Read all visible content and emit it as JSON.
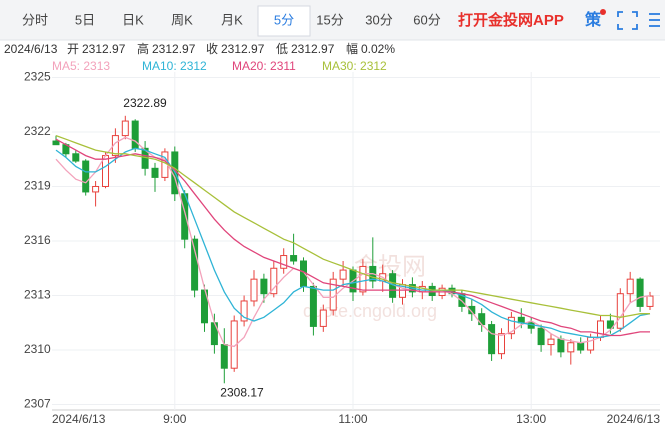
{
  "tabs": [
    "分时",
    "5日",
    "日K",
    "周K",
    "月K",
    "5分",
    "15分",
    "30分",
    "60分"
  ],
  "selected_tab": 5,
  "app_link": "打开金投网APP",
  "strategy": "策",
  "info": [
    "2024/6/13",
    "开",
    "2312.97",
    "高",
    "2312.97",
    "收",
    "2312.97",
    "低",
    "2312.97",
    "幅",
    "0.02%"
  ],
  "watermark": [
    "金投网",
    "quote.cngold.org"
  ],
  "chart_data": {
    "type": "candlestick",
    "up_color": "#e8413c",
    "down_color": "#1e9e38",
    "ylim": [
      2306.7,
      2325.3
    ],
    "yticks": [
      2307,
      2310,
      2313,
      2316,
      2319,
      2322,
      2325
    ],
    "grid": true,
    "categories": [
      "2024/6/13",
      null,
      null,
      null,
      null,
      null,
      null,
      null,
      null,
      null,
      null,
      null,
      "9:00",
      null,
      null,
      null,
      null,
      null,
      null,
      null,
      null,
      null,
      null,
      null,
      null,
      null,
      null,
      null,
      null,
      null,
      "11:00",
      null,
      null,
      null,
      null,
      null,
      null,
      null,
      null,
      null,
      null,
      null,
      null,
      null,
      null,
      null,
      null,
      null,
      "13:00",
      null,
      null,
      null,
      null,
      null,
      null,
      null,
      null,
      null,
      null,
      null,
      "2024/6/13"
    ],
    "open": [
      2321.5,
      2321.3,
      2320.8,
      2320.4,
      2318.7,
      2319.0,
      2320.7,
      2321.8,
      2322.6,
      2321.1,
      2320.0,
      2319.5,
      2320.9,
      2318.6,
      2316.1,
      2313.3,
      2311.5,
      2310.3,
      2309.0,
      2311.6,
      2312.7,
      2313.9,
      2313.1,
      2314.5,
      2315.2,
      2314.9,
      2313.5,
      2311.3,
      2312.2,
      2313.9,
      2314.4,
      2313.2,
      2314.6,
      2313.8,
      2314.2,
      2312.9,
      2313.6,
      2313.2,
      2313.5,
      2313.0,
      2313.4,
      2313.1,
      2312.4,
      2312.0,
      2311.4,
      2309.8,
      2310.9,
      2311.8,
      2311.5,
      2311.2,
      2310.3,
      2310.6,
      2309.9,
      2310.4,
      2310.0,
      2310.7,
      2311.6,
      2311.2,
      2313.1,
      2313.9,
      2312.4
    ],
    "high": [
      2321.8,
      2321.4,
      2321.0,
      2320.5,
      2319.3,
      2320.9,
      2322.2,
      2322.89,
      2322.7,
      2321.5,
      2320.3,
      2321.1,
      2321.2,
      2318.8,
      2316.3,
      2313.6,
      2312.0,
      2311.2,
      2311.9,
      2313.0,
      2314.4,
      2314.2,
      2314.9,
      2315.6,
      2316.4,
      2315.1,
      2313.7,
      2312.5,
      2314.3,
      2314.9,
      2314.6,
      2315.0,
      2316.2,
      2314.7,
      2314.4,
      2313.9,
      2314.0,
      2313.8,
      2313.7,
      2313.6,
      2313.6,
      2313.3,
      2312.8,
      2312.3,
      2311.6,
      2311.2,
      2312.1,
      2312.3,
      2311.8,
      2311.4,
      2310.9,
      2310.8,
      2310.6,
      2310.7,
      2310.9,
      2311.9,
      2312.0,
      2313.4,
      2314.3,
      2314.0,
      2313.2
    ],
    "low": [
      2321.3,
      2320.6,
      2320.3,
      2318.5,
      2317.9,
      2318.9,
      2320.3,
      2321.6,
      2320.9,
      2319.6,
      2318.7,
      2319.3,
      2318.2,
      2315.6,
      2312.9,
      2311.0,
      2309.8,
      2308.17,
      2308.8,
      2311.3,
      2312.4,
      2312.6,
      2312.9,
      2314.2,
      2314.7,
      2313.2,
      2310.8,
      2311.0,
      2311.9,
      2313.5,
      2312.7,
      2313.0,
      2313.4,
      2313.2,
      2312.6,
      2312.5,
      2312.9,
      2312.8,
      2312.7,
      2312.8,
      2312.9,
      2312.1,
      2311.6,
      2311.0,
      2309.4,
      2309.5,
      2310.6,
      2311.2,
      2310.9,
      2309.9,
      2309.7,
      2309.6,
      2309.2,
      2309.8,
      2309.8,
      2310.5,
      2310.9,
      2311.0,
      2312.6,
      2312.1,
      2312.2
    ],
    "close": [
      2321.3,
      2320.8,
      2320.4,
      2318.7,
      2319.0,
      2320.7,
      2321.8,
      2322.6,
      2321.1,
      2320.0,
      2319.5,
      2320.9,
      2318.6,
      2316.1,
      2313.3,
      2311.5,
      2310.3,
      2309.0,
      2311.6,
      2312.7,
      2313.9,
      2313.1,
      2314.5,
      2315.2,
      2314.9,
      2313.5,
      2311.3,
      2312.2,
      2313.9,
      2314.4,
      2313.2,
      2314.6,
      2313.8,
      2314.2,
      2312.9,
      2313.6,
      2313.2,
      2313.5,
      2313.0,
      2313.4,
      2313.1,
      2312.4,
      2312.0,
      2311.4,
      2309.8,
      2310.9,
      2311.8,
      2311.5,
      2311.2,
      2310.3,
      2310.6,
      2309.9,
      2310.4,
      2310.0,
      2310.7,
      2311.6,
      2311.2,
      2313.1,
      2313.9,
      2312.4,
      2312.97
    ],
    "annotations": [
      {
        "value": 2322.89,
        "label": "2322.89"
      },
      {
        "value": 2308.17,
        "label": "2308.17"
      }
    ],
    "series": [
      {
        "name": "MA5: 2313",
        "color": "#f3a2bb",
        "values": [
          2320.5,
          2319.9,
          2319.4,
          2319.2,
          2319.8,
          2320.7,
          2321.4,
          2321.7,
          2321.5,
          2321.0,
          2320.6,
          2320.5,
          2319.5,
          2317.6,
          2315.5,
          2313.4,
          2311.5,
          2310.3,
          2310.2,
          2310.7,
          2311.8,
          2312.8,
          2313.4,
          2314.0,
          2314.5,
          2314.3,
          2313.6,
          2312.9,
          2312.9,
          2313.4,
          2313.8,
          2314.2,
          2314.2,
          2314.0,
          2313.6,
          2313.4,
          2313.3,
          2313.2,
          2313.2,
          2313.3,
          2313.1,
          2312.7,
          2312.1,
          2311.4,
          2310.9,
          2310.8,
          2311.0,
          2311.4,
          2311.6,
          2311.3,
          2310.9,
          2310.6,
          2310.5,
          2310.4,
          2310.5,
          2310.7,
          2311.1,
          2311.8,
          2312.6,
          2312.9,
          2313.0
        ]
      },
      {
        "name": "MA10: 2312",
        "color": "#2fb4d6",
        "values": [
          2321.0,
          2320.6,
          2320.1,
          2319.8,
          2319.8,
          2320.1,
          2320.5,
          2320.9,
          2321.1,
          2321.0,
          2320.8,
          2320.6,
          2319.8,
          2318.6,
          2317.2,
          2315.8,
          2314.4,
          2313.2,
          2312.3,
          2311.8,
          2311.6,
          2311.8,
          2312.2,
          2312.6,
          2313.2,
          2313.5,
          2313.4,
          2313.3,
          2313.3,
          2313.6,
          2313.7,
          2313.8,
          2313.9,
          2313.8,
          2313.6,
          2313.5,
          2313.4,
          2313.3,
          2313.3,
          2313.3,
          2313.2,
          2313.0,
          2312.8,
          2312.5,
          2312.1,
          2311.8,
          2311.6,
          2311.5,
          2311.4,
          2311.3,
          2311.2,
          2311.0,
          2310.9,
          2310.8,
          2310.7,
          2310.7,
          2310.8,
          2311.1,
          2311.5,
          2311.9,
          2312.0
        ]
      },
      {
        "name": "MA20: 2311",
        "color": "#e0457b",
        "values": [
          2321.6,
          2321.3,
          2321.0,
          2320.7,
          2320.5,
          2320.5,
          2320.6,
          2320.7,
          2320.8,
          2320.7,
          2320.6,
          2320.4,
          2319.9,
          2319.3,
          2318.6,
          2317.9,
          2317.2,
          2316.6,
          2316.1,
          2315.7,
          2315.4,
          2315.1,
          2314.9,
          2314.7,
          2314.5,
          2314.3,
          2314.0,
          2313.7,
          2313.6,
          2313.5,
          2313.4,
          2313.3,
          2313.3,
          2313.3,
          2313.3,
          2313.3,
          2313.3,
          2313.2,
          2313.2,
          2313.2,
          2313.2,
          2313.1,
          2313.0,
          2312.8,
          2312.6,
          2312.4,
          2312.2,
          2312.0,
          2311.8,
          2311.6,
          2311.5,
          2311.3,
          2311.2,
          2311.0,
          2311.0,
          2310.9,
          2310.8,
          2310.8,
          2310.9,
          2311.0,
          2311.0
        ]
      },
      {
        "name": "MA30: 2312",
        "color": "#a8c03a",
        "values": [
          2321.8,
          2321.6,
          2321.4,
          2321.2,
          2321.0,
          2320.9,
          2320.8,
          2320.8,
          2320.7,
          2320.6,
          2320.5,
          2320.3,
          2320.0,
          2319.6,
          2319.2,
          2318.8,
          2318.4,
          2318.0,
          2317.6,
          2317.3,
          2317.0,
          2316.7,
          2316.4,
          2316.1,
          2315.9,
          2315.6,
          2315.3,
          2315.0,
          2314.8,
          2314.6,
          2314.4,
          2314.2,
          2314.0,
          2313.9,
          2313.7,
          2313.6,
          2313.5,
          2313.4,
          2313.3,
          2313.3,
          2313.3,
          2313.3,
          2313.2,
          2313.1,
          2313.0,
          2312.9,
          2312.8,
          2312.7,
          2312.6,
          2312.5,
          2312.4,
          2312.3,
          2312.2,
          2312.1,
          2312.0,
          2311.9,
          2311.9,
          2311.8,
          2311.9,
          2312.0,
          2312.0
        ]
      }
    ]
  }
}
